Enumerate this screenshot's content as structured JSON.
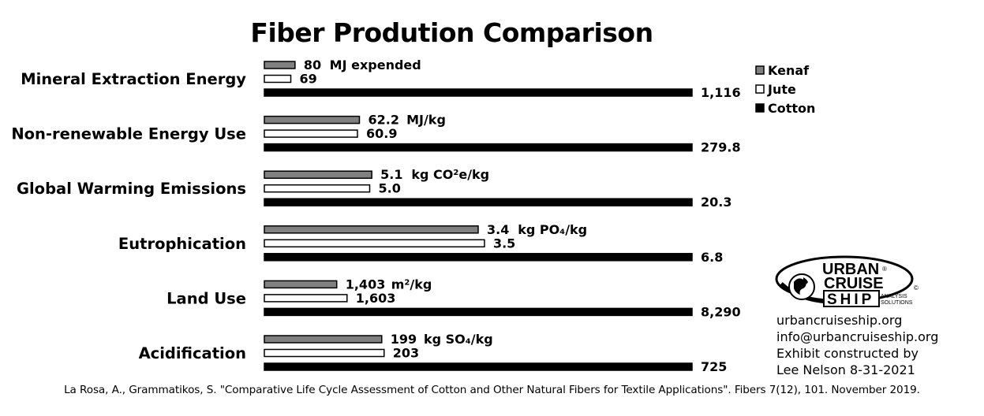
{
  "chart_data": {
    "type": "bar",
    "orientation": "horizontal",
    "title": "Fiber Prodution Comparison",
    "categories": [
      "Mineral Extraction Energy",
      "Non-renewable Energy Use",
      "Global Warming Emissions",
      "Eutrophication",
      "Land Use",
      "Acidification"
    ],
    "units": [
      {
        "pre": "MJ expended",
        "sup": "",
        "post": ""
      },
      {
        "pre": "MJ/kg",
        "sup": "",
        "post": ""
      },
      {
        "pre": "kg CO",
        "sup": "2",
        "post": "e/kg"
      },
      {
        "pre": "kg PO₄/kg",
        "sup": "",
        "post": ""
      },
      {
        "pre": "m",
        "sup": "2",
        "post": "/kg"
      },
      {
        "pre": "kg SO₄/kg",
        "sup": "",
        "post": ""
      }
    ],
    "series": [
      {
        "name": "Kenaf",
        "color": "#808080",
        "values": [
          80,
          62.2,
          5.1,
          3.4,
          1403,
          199
        ],
        "labels": [
          "80",
          "62.2",
          "5.1",
          "3.4",
          "1,403",
          "199"
        ]
      },
      {
        "name": "Jute",
        "color": "#ffffff",
        "values": [
          69,
          60.9,
          5.0,
          3.5,
          1603,
          203
        ],
        "labels": [
          "69",
          "60.9",
          "5.0",
          "3.5",
          "1,603",
          "203"
        ]
      },
      {
        "name": "Cotton",
        "color": "#000000",
        "values": [
          1116,
          279.8,
          20.3,
          6.8,
          8290,
          725
        ],
        "labels": [
          "1,116",
          "279.8",
          "20.3",
          "6.8",
          "8,290",
          "725"
        ]
      }
    ],
    "scaling": "each category bars normalized to its Cotton value",
    "legend_position": "right",
    "grid": false
  },
  "logo": {
    "line1": "URBAN",
    "line2": "CRUISE",
    "line3": "SHIP",
    "tagline1": "ANALYSIS",
    "tagline2": "SOLUTIONS",
    "reg": "®",
    "copy": "©"
  },
  "info": {
    "website": "urbancruiseship.org",
    "email": "info@urbancruiseship.org",
    "credit1": "Exhibit constructed by",
    "credit2": "Lee Nelson 8-31-2021"
  },
  "source": "La Rosa, A., Grammatikos, S. \"Comparative Life Cycle Assessment of Cotton and Other Natural Fibers for Textile Applications\". Fibers 7(12), 101. November 2019."
}
